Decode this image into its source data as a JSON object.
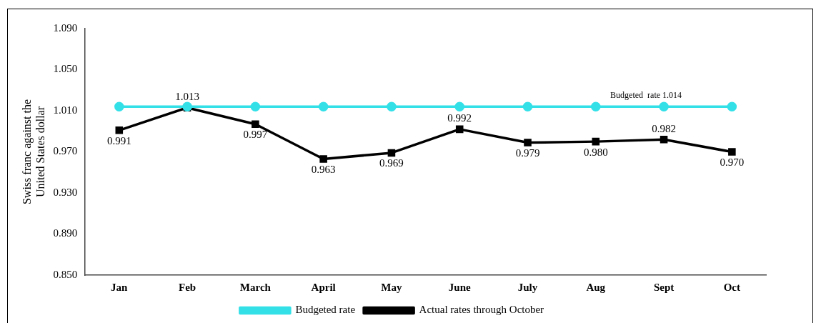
{
  "chart_data": {
    "type": "line",
    "ylabel": "Swiss franc against the United States dollar",
    "categories": [
      "Jan",
      "Feb",
      "March",
      "April",
      "May",
      "June",
      "July",
      "Aug",
      "Sept",
      "Oct"
    ],
    "series": [
      {
        "name": "Budgeted rate",
        "color": "#33e0e8",
        "marker": "circle",
        "values": [
          1.014,
          1.014,
          1.014,
          1.014,
          1.014,
          1.014,
          1.014,
          1.014,
          1.014,
          1.014
        ]
      },
      {
        "name": "Actual rates through October",
        "color": "#000000",
        "marker": "square",
        "values": [
          0.991,
          1.013,
          0.997,
          0.963,
          0.969,
          0.992,
          0.979,
          0.98,
          0.982,
          0.97
        ],
        "value_labels": [
          "0.991",
          "1.013",
          "0.997",
          "0.963",
          "0.969",
          "0.992",
          "0.979",
          "0.980",
          "0.982",
          "0.970"
        ]
      }
    ],
    "annotations": [
      {
        "text": "Budgeted  rate 1.014",
        "x": "Sept",
        "y": 1.014
      }
    ],
    "ylim": [
      0.85,
      1.09
    ],
    "yticks": [
      {
        "value": 0.85,
        "label": "0.850"
      },
      {
        "value": 0.89,
        "label": "0.890"
      },
      {
        "value": 0.93,
        "label": "0.930"
      },
      {
        "value": 0.97,
        "label": "0.970"
      },
      {
        "value": 1.01,
        "label": "1.010"
      },
      {
        "value": 1.05,
        "label": "1.050"
      },
      {
        "value": 1.09,
        "label": "1.090"
      }
    ],
    "grid": false,
    "legend": "bottom",
    "line_style": "solid"
  }
}
